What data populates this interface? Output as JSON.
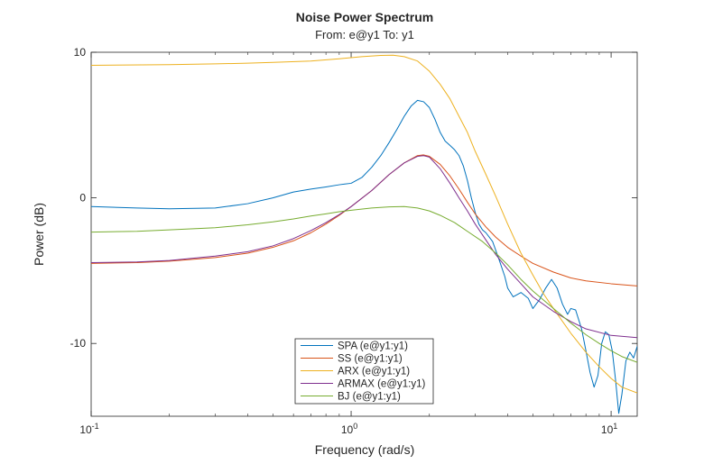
{
  "chart_data": {
    "type": "line",
    "title": "Noise Power Spectrum",
    "subtitle": "From: e@y1  To: y1",
    "xlabel": "Frequency (rad/s)",
    "ylabel": "Power (dB)",
    "xscale": "log",
    "xlim": [
      0.1,
      12.6
    ],
    "ylim": [
      -15,
      10
    ],
    "x_ticks": [
      {
        "value": 0.1,
        "base": "10",
        "exp": "-1"
      },
      {
        "value": 1,
        "base": "10",
        "exp": "0"
      },
      {
        "value": 10,
        "base": "10",
        "exp": "1"
      }
    ],
    "y_ticks": [
      {
        "value": 10,
        "label": "10"
      },
      {
        "value": 0,
        "label": "0"
      },
      {
        "value": -10,
        "label": "-10"
      }
    ],
    "grid": false,
    "legend_position": "bottom-center",
    "series": [
      {
        "name": "SPA (e@y1:y1)",
        "color": "#0072BD",
        "points": [
          [
            0.1,
            -0.6
          ],
          [
            0.15,
            -0.7
          ],
          [
            0.2,
            -0.75
          ],
          [
            0.3,
            -0.7
          ],
          [
            0.4,
            -0.4
          ],
          [
            0.5,
            0.0
          ],
          [
            0.6,
            0.4
          ],
          [
            0.7,
            0.6
          ],
          [
            0.8,
            0.75
          ],
          [
            0.9,
            0.9
          ],
          [
            1.0,
            1.0
          ],
          [
            1.1,
            1.4
          ],
          [
            1.2,
            2.1
          ],
          [
            1.3,
            2.9
          ],
          [
            1.4,
            3.8
          ],
          [
            1.5,
            4.7
          ],
          [
            1.6,
            5.6
          ],
          [
            1.7,
            6.3
          ],
          [
            1.8,
            6.7
          ],
          [
            1.9,
            6.6
          ],
          [
            2.0,
            6.2
          ],
          [
            2.1,
            5.4
          ],
          [
            2.2,
            4.5
          ],
          [
            2.3,
            3.9
          ],
          [
            2.4,
            3.6
          ],
          [
            2.5,
            3.3
          ],
          [
            2.6,
            2.9
          ],
          [
            2.7,
            2.2
          ],
          [
            2.8,
            1.2
          ],
          [
            2.9,
            0.0
          ],
          [
            3.0,
            -1.0
          ],
          [
            3.1,
            -1.8
          ],
          [
            3.2,
            -2.2
          ],
          [
            3.3,
            -2.4
          ],
          [
            3.5,
            -3.0
          ],
          [
            3.7,
            -4.2
          ],
          [
            3.9,
            -5.4
          ],
          [
            4.0,
            -6.2
          ],
          [
            4.2,
            -6.8
          ],
          [
            4.5,
            -6.5
          ],
          [
            4.8,
            -6.9
          ],
          [
            5.0,
            -7.6
          ],
          [
            5.3,
            -7.0
          ],
          [
            5.6,
            -6.2
          ],
          [
            5.9,
            -5.6
          ],
          [
            6.2,
            -6.2
          ],
          [
            6.5,
            -7.3
          ],
          [
            6.8,
            -8.0
          ],
          [
            7.0,
            -7.6
          ],
          [
            7.3,
            -7.7
          ],
          [
            7.7,
            -9.0
          ],
          [
            8.0,
            -10.5
          ],
          [
            8.3,
            -12.0
          ],
          [
            8.6,
            -13.0
          ],
          [
            8.9,
            -12.2
          ],
          [
            9.2,
            -10.0
          ],
          [
            9.5,
            -9.2
          ],
          [
            9.8,
            -9.4
          ],
          [
            10.1,
            -10.5
          ],
          [
            10.4,
            -12.5
          ],
          [
            10.7,
            -14.8
          ],
          [
            11.0,
            -13.5
          ],
          [
            11.4,
            -11.2
          ],
          [
            11.8,
            -10.6
          ],
          [
            12.2,
            -11.0
          ],
          [
            12.6,
            -10.2
          ]
        ]
      },
      {
        "name": "SS (e@y1:y1)",
        "color": "#D95319",
        "points": [
          [
            0.1,
            -4.5
          ],
          [
            0.15,
            -4.45
          ],
          [
            0.2,
            -4.35
          ],
          [
            0.3,
            -4.1
          ],
          [
            0.4,
            -3.8
          ],
          [
            0.5,
            -3.4
          ],
          [
            0.6,
            -2.95
          ],
          [
            0.7,
            -2.4
          ],
          [
            0.8,
            -1.8
          ],
          [
            0.9,
            -1.2
          ],
          [
            1.0,
            -0.6
          ],
          [
            1.2,
            0.5
          ],
          [
            1.4,
            1.6
          ],
          [
            1.6,
            2.4
          ],
          [
            1.8,
            2.9
          ],
          [
            1.9,
            2.95
          ],
          [
            2.0,
            2.85
          ],
          [
            2.2,
            2.3
          ],
          [
            2.4,
            1.5
          ],
          [
            2.6,
            0.6
          ],
          [
            2.8,
            -0.3
          ],
          [
            3.0,
            -1.1
          ],
          [
            3.3,
            -2.0
          ],
          [
            3.6,
            -2.7
          ],
          [
            4.0,
            -3.4
          ],
          [
            4.5,
            -4.0
          ],
          [
            5.0,
            -4.5
          ],
          [
            6.0,
            -5.1
          ],
          [
            7.0,
            -5.5
          ],
          [
            8.0,
            -5.7
          ],
          [
            10.0,
            -5.9
          ],
          [
            12.6,
            -6.05
          ]
        ]
      },
      {
        "name": "ARX (e@y1:y1)",
        "color": "#EDB120",
        "points": [
          [
            0.1,
            9.1
          ],
          [
            0.2,
            9.15
          ],
          [
            0.3,
            9.2
          ],
          [
            0.4,
            9.25
          ],
          [
            0.5,
            9.3
          ],
          [
            0.7,
            9.4
          ],
          [
            0.9,
            9.55
          ],
          [
            1.1,
            9.7
          ],
          [
            1.3,
            9.78
          ],
          [
            1.45,
            9.8
          ],
          [
            1.6,
            9.7
          ],
          [
            1.8,
            9.4
          ],
          [
            2.0,
            8.7
          ],
          [
            2.2,
            7.8
          ],
          [
            2.4,
            6.8
          ],
          [
            2.6,
            5.6
          ],
          [
            2.8,
            4.5
          ],
          [
            3.0,
            3.2
          ],
          [
            3.3,
            1.6
          ],
          [
            3.6,
            0.1
          ],
          [
            4.0,
            -1.8
          ],
          [
            4.5,
            -3.8
          ],
          [
            5.0,
            -5.3
          ],
          [
            5.5,
            -6.6
          ],
          [
            6.0,
            -7.6
          ],
          [
            7.0,
            -9.3
          ],
          [
            8.0,
            -10.6
          ],
          [
            9.0,
            -11.6
          ],
          [
            10.0,
            -12.4
          ],
          [
            11.0,
            -13.0
          ],
          [
            12.6,
            -13.4
          ]
        ]
      },
      {
        "name": "ARMAX (e@y1:y1)",
        "color": "#7E2F8E",
        "points": [
          [
            0.1,
            -4.45
          ],
          [
            0.15,
            -4.4
          ],
          [
            0.2,
            -4.3
          ],
          [
            0.3,
            -4.0
          ],
          [
            0.4,
            -3.7
          ],
          [
            0.5,
            -3.3
          ],
          [
            0.6,
            -2.8
          ],
          [
            0.7,
            -2.25
          ],
          [
            0.8,
            -1.7
          ],
          [
            0.9,
            -1.15
          ],
          [
            1.0,
            -0.6
          ],
          [
            1.2,
            0.5
          ],
          [
            1.4,
            1.6
          ],
          [
            1.6,
            2.4
          ],
          [
            1.8,
            2.85
          ],
          [
            1.9,
            2.9
          ],
          [
            2.0,
            2.8
          ],
          [
            2.2,
            2.0
          ],
          [
            2.4,
            1.0
          ],
          [
            2.6,
            0.0
          ],
          [
            2.8,
            -0.9
          ],
          [
            3.0,
            -1.8
          ],
          [
            3.3,
            -2.9
          ],
          [
            3.6,
            -3.9
          ],
          [
            4.0,
            -4.9
          ],
          [
            4.5,
            -5.9
          ],
          [
            5.0,
            -6.8
          ],
          [
            6.0,
            -7.8
          ],
          [
            7.0,
            -8.5
          ],
          [
            8.0,
            -9.0
          ],
          [
            10.0,
            -9.45
          ],
          [
            12.6,
            -9.6
          ]
        ]
      },
      {
        "name": "BJ (e@y1:y1)",
        "color": "#77AC30",
        "points": [
          [
            0.1,
            -2.35
          ],
          [
            0.15,
            -2.3
          ],
          [
            0.2,
            -2.2
          ],
          [
            0.3,
            -2.05
          ],
          [
            0.4,
            -1.85
          ],
          [
            0.5,
            -1.65
          ],
          [
            0.6,
            -1.45
          ],
          [
            0.7,
            -1.25
          ],
          [
            0.8,
            -1.1
          ],
          [
            0.9,
            -0.95
          ],
          [
            1.0,
            -0.85
          ],
          [
            1.2,
            -0.7
          ],
          [
            1.4,
            -0.62
          ],
          [
            1.6,
            -0.6
          ],
          [
            1.8,
            -0.7
          ],
          [
            2.0,
            -0.9
          ],
          [
            2.2,
            -1.2
          ],
          [
            2.5,
            -1.7
          ],
          [
            2.8,
            -2.3
          ],
          [
            3.2,
            -3.0
          ],
          [
            3.6,
            -3.8
          ],
          [
            4.0,
            -4.6
          ],
          [
            4.5,
            -5.6
          ],
          [
            5.0,
            -6.4
          ],
          [
            6.0,
            -7.6
          ],
          [
            7.0,
            -8.6
          ],
          [
            8.0,
            -9.4
          ],
          [
            9.0,
            -10.0
          ],
          [
            10.0,
            -10.5
          ],
          [
            11.0,
            -10.9
          ],
          [
            12.6,
            -11.3
          ]
        ]
      }
    ]
  }
}
